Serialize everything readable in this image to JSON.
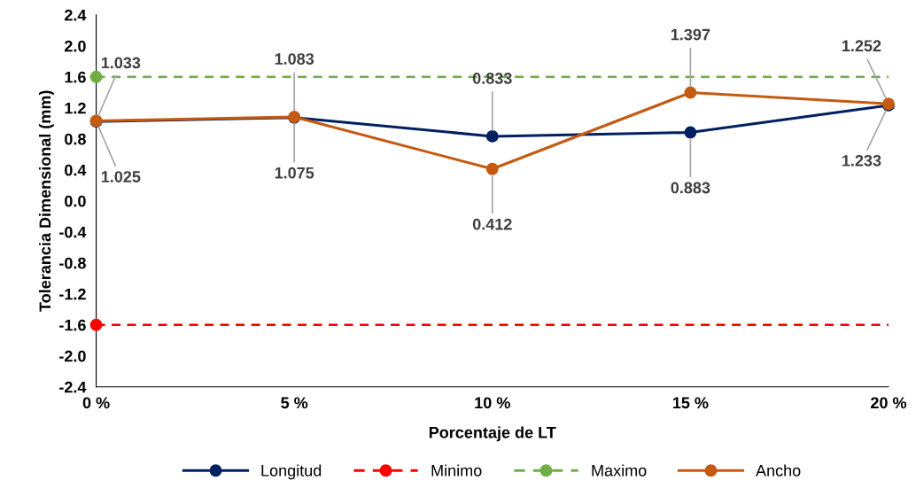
{
  "chart_data": {
    "type": "line",
    "xlabel": "Porcentaje de LT",
    "ylabel": "Tolerancia Dimensional (mm)",
    "categories": [
      "0 %",
      "5 %",
      "10 %",
      "15 %",
      "20 %"
    ],
    "series": [
      {
        "name": "Longitud",
        "color": "#002060",
        "values": [
          1.025,
          1.075,
          0.833,
          0.883,
          1.233
        ],
        "value_labels": [
          "1.025",
          "1.075",
          "0.833",
          "0.883",
          "1.233"
        ],
        "marker": "circle",
        "line_style": "solid"
      },
      {
        "name": "Minimo",
        "color": "#ff0000",
        "values": [
          -1.6,
          null,
          null,
          null,
          null
        ],
        "marker": "circle",
        "line_style": "dashed"
      },
      {
        "name": "Maximo",
        "color": "#70ad47",
        "values": [
          1.6,
          null,
          null,
          null,
          null
        ],
        "marker": "circle",
        "line_style": "dashed"
      },
      {
        "name": "Ancho",
        "color": "#c55a11",
        "values": [
          1.033,
          1.083,
          0.412,
          1.397,
          1.252
        ],
        "value_labels": [
          "1.033",
          "1.083",
          "0.412",
          "1.397",
          "1.252"
        ],
        "marker": "circle",
        "line_style": "solid"
      }
    ],
    "ref_lines": [
      {
        "axis": "y",
        "value": -1.6,
        "color": "#ff0000",
        "line_style": "dashed"
      },
      {
        "axis": "y",
        "value": 1.6,
        "color": "#70ad47",
        "line_style": "dashed"
      }
    ],
    "ylim": [
      -2.4,
      2.4
    ],
    "yticks": [
      {
        "value": -2.4,
        "label": "-2.4"
      },
      {
        "value": -2.0,
        "label": "-2.0"
      },
      {
        "value": -1.6,
        "label": "-1.6"
      },
      {
        "value": -1.2,
        "label": "-1.2"
      },
      {
        "value": -0.8,
        "label": "-0.8"
      },
      {
        "value": -0.4,
        "label": "-0.4"
      },
      {
        "value": 0.0,
        "label": "0.0"
      },
      {
        "value": 0.4,
        "label": "0.4"
      },
      {
        "value": 0.8,
        "label": "0.8"
      },
      {
        "value": 1.2,
        "label": "1.2"
      },
      {
        "value": 1.6,
        "label": "1.6"
      },
      {
        "value": 2.0,
        "label": "2.0"
      },
      {
        "value": 2.4,
        "label": "2.4"
      }
    ],
    "grid": false,
    "legend": "bottom"
  }
}
